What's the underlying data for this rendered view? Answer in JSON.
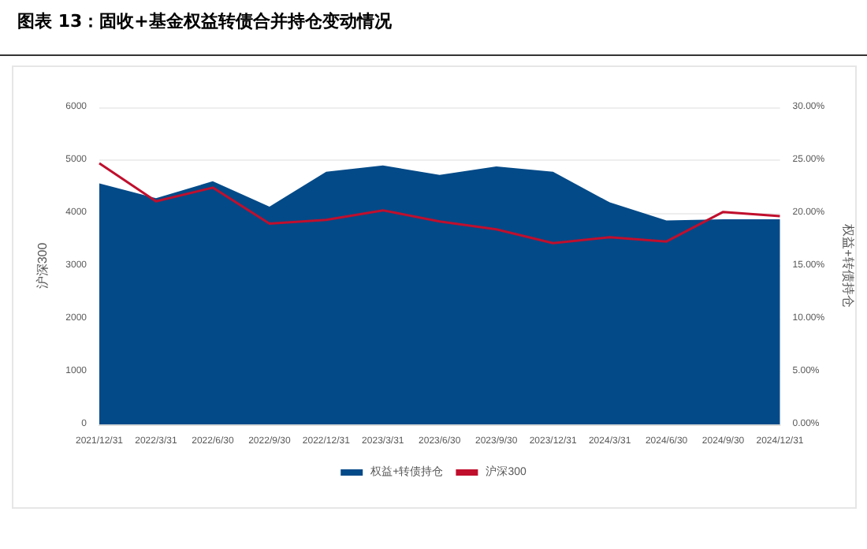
{
  "chart_data": {
    "type": "area",
    "title": "图表 13：固收+基金权益转债合并持仓变动情况",
    "ylabel": "沪深300",
    "y2label": "权益+转债持仓",
    "categories": [
      "2021/12/31",
      "2022/3/31",
      "2022/6/30",
      "2022/9/30",
      "2022/12/31",
      "2023/3/31",
      "2023/6/30",
      "2023/9/30",
      "2023/12/31",
      "2024/3/31",
      "2024/6/30",
      "2024/9/30",
      "2024/12/31"
    ],
    "series": [
      {
        "name": "权益+转债持仓",
        "axis": "y2",
        "color": "#034a88",
        "values": [
          22.8,
          21.4,
          23.0,
          20.6,
          23.9,
          24.5,
          23.6,
          24.4,
          23.9,
          21.0,
          19.3,
          19.4,
          19.4
        ]
      },
      {
        "name": "沪深300",
        "type": "line",
        "color": "#c00f2d",
        "values": [
          4940,
          4220,
          4480,
          3800,
          3870,
          4050,
          3840,
          3690,
          3430,
          3540,
          3460,
          4020,
          3940
        ]
      }
    ],
    "ylim": [
      0,
      6000
    ],
    "yticks": [
      0,
      1000,
      2000,
      3000,
      4000,
      5000,
      6000
    ],
    "y2lim": [
      0,
      30
    ],
    "y2ticks": [
      {
        "value": 0,
        "label": "0.00%"
      },
      {
        "value": 5,
        "label": "5.00%"
      },
      {
        "value": 10,
        "label": "10.00%"
      },
      {
        "value": 15,
        "label": "15.00%"
      },
      {
        "value": 20,
        "label": "20.00%"
      },
      {
        "value": 25,
        "label": "25.00%"
      },
      {
        "value": 30,
        "label": "30.00%"
      }
    ],
    "grid": "y",
    "legend": "bottom",
    "marker": "none",
    "line_style": "solid"
  }
}
